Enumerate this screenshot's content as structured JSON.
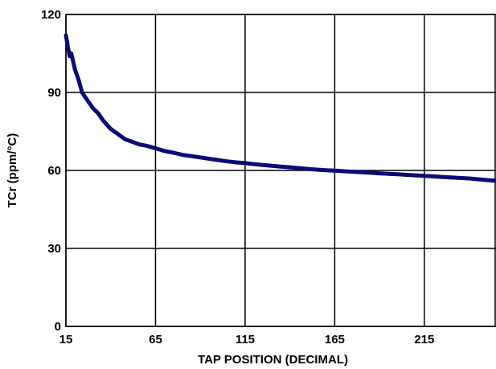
{
  "chart_data": {
    "type": "line",
    "title": "",
    "xlabel": "TAP POSITION (DECIMAL)",
    "ylabel": "TCr (ppm/°C)",
    "xlim": [
      15,
      255
    ],
    "ylim": [
      0,
      120
    ],
    "xticks": [
      15,
      65,
      115,
      165,
      215
    ],
    "yticks": [
      0,
      30,
      60,
      90,
      120
    ],
    "grid": true,
    "line_color": "#0a0a78",
    "series": [
      {
        "x": [
          15,
          16,
          17,
          18,
          19,
          20,
          22,
          24,
          26,
          28,
          30,
          33,
          36,
          40,
          44,
          48,
          52,
          56,
          60,
          65,
          70,
          75,
          80,
          85,
          90,
          95,
          100,
          105,
          110,
          115,
          120,
          125,
          130,
          135,
          140,
          145,
          150,
          155,
          160,
          165,
          170,
          175,
          180,
          185,
          190,
          195,
          200,
          205,
          210,
          215,
          220,
          225,
          230,
          235,
          240,
          245,
          250,
          255
        ],
        "y": [
          112,
          108,
          104,
          105,
          102,
          99,
          95,
          90,
          88,
          86,
          84,
          82,
          79,
          76,
          74,
          72,
          71,
          70,
          69.5,
          68.5,
          67.5,
          66.8,
          66,
          65.5,
          65,
          64.5,
          64,
          63.5,
          63.1,
          62.8,
          62.4,
          62.1,
          61.8,
          61.5,
          61.2,
          60.9,
          60.6,
          60.3,
          60.1,
          59.9,
          59.7,
          59.5,
          59.3,
          59.1,
          58.9,
          58.7,
          58.5,
          58.3,
          58.1,
          57.9,
          57.7,
          57.5,
          57.3,
          57.1,
          56.9,
          56.6,
          56.3,
          56
        ]
      }
    ]
  }
}
